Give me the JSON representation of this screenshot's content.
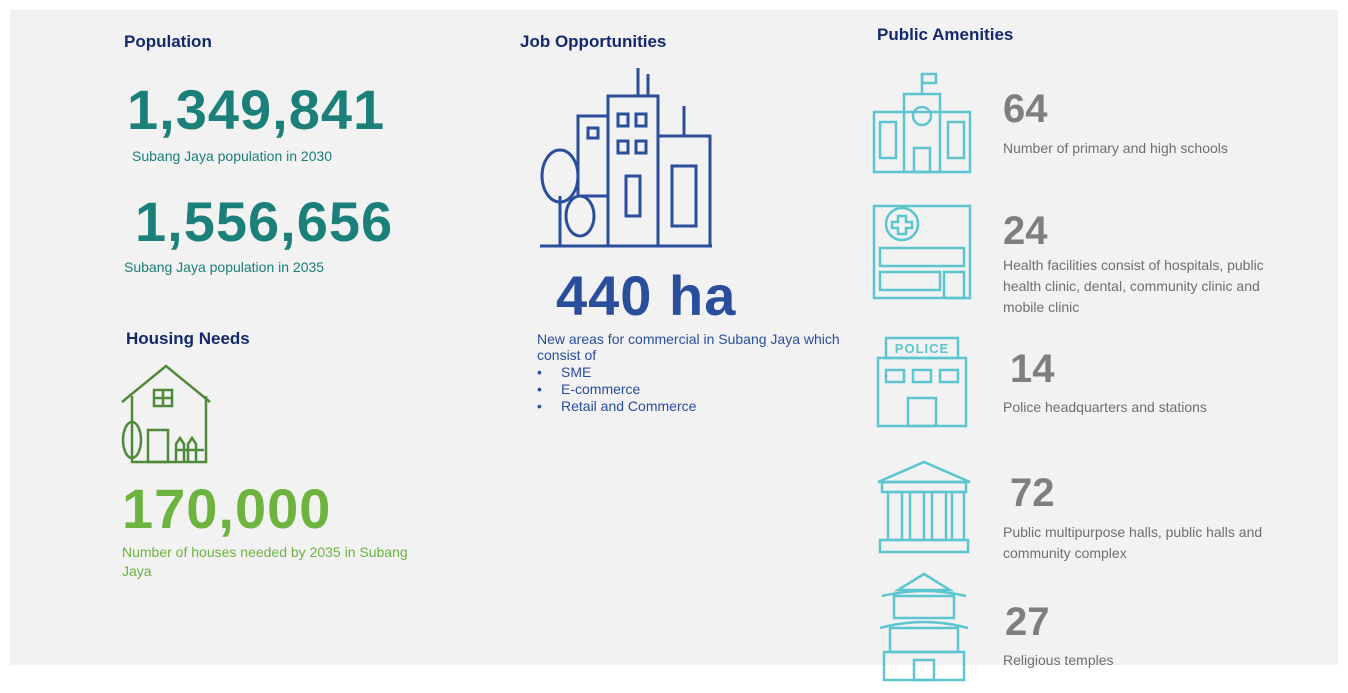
{
  "population": {
    "title": "Population",
    "items": [
      {
        "number": "1,349,841",
        "label": "Subang Jaya population in 2030"
      },
      {
        "number": "1,556,656",
        "label": "Subang Jaya population in 2035"
      }
    ]
  },
  "housing": {
    "title": "Housing Needs",
    "number": "170,000",
    "label": "Number of houses needed by 2035 in Subang Jaya"
  },
  "jobs": {
    "title": "Job Opportunities",
    "number": "440 ha",
    "label": "New areas for commercial in Subang Jaya which consist of",
    "bullets": [
      "SME",
      "E-commerce",
      "Retail and Commerce"
    ]
  },
  "amenities": {
    "title": "Public Amenities",
    "items": [
      {
        "number": "64",
        "label": "Number of primary and high schools"
      },
      {
        "number": "24",
        "label": "Health facilities consist of hospitals, public health clinic, dental, community clinic and mobile clinic"
      },
      {
        "number": "14",
        "label": "Police headquarters and stations"
      },
      {
        "number": "72",
        "label": "Public multipurpose halls, public halls and community complex"
      },
      {
        "number": "27",
        "label": "Religious temples"
      }
    ]
  }
}
